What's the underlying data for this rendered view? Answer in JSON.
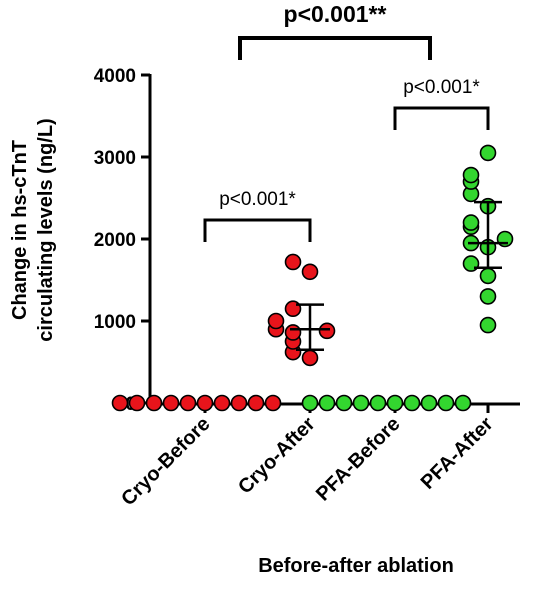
{
  "chart_data": {
    "type": "scatter",
    "xlabel": "Before-after ablation",
    "ylabel_lines": [
      "Change in hs-cTnT",
      "circulating levels (ng/L)"
    ],
    "ylim": [
      0,
      4000
    ],
    "yticks": [
      0,
      1000,
      2000,
      3000,
      4000
    ],
    "categories": [
      "Cryo-Before",
      "Cryo-After",
      "PFA-Before",
      "PFA-After"
    ],
    "series": [
      {
        "category": "Cryo-Before",
        "color": "#e8141b",
        "points": [
          0,
          0,
          0,
          0,
          0,
          0,
          0,
          0,
          0,
          0
        ],
        "median": 0,
        "q1": 0,
        "q3": 0
      },
      {
        "category": "Cryo-After",
        "color": "#e8141b",
        "points": [
          1720,
          1600,
          1150,
          1000,
          900,
          880,
          860,
          750,
          620,
          550
        ],
        "median": 900,
        "q1": 650,
        "q3": 1200
      },
      {
        "category": "PFA-Before",
        "color": "#33d62f",
        "points": [
          0,
          0,
          0,
          0,
          0,
          0,
          0,
          0,
          0,
          0
        ],
        "median": 0,
        "q1": 0,
        "q3": 0
      },
      {
        "category": "PFA-After",
        "color": "#33d62f",
        "points": [
          3050,
          2780,
          2700,
          2550,
          2400,
          2200,
          2150,
          2000,
          1950,
          1900,
          1700,
          1550,
          1300,
          950
        ],
        "median": 1950,
        "q1": 1650,
        "q3": 2450
      }
    ],
    "annotations": [
      {
        "from": "Cryo-Before",
        "to": "Cryo-After",
        "text": "p<0.001*"
      },
      {
        "from": "PFA-Before",
        "to": "PFA-After",
        "text": "p<0.001*"
      },
      {
        "from": "Cryo-After",
        "to": "PFA-After",
        "text": "p<0.001**"
      }
    ]
  }
}
